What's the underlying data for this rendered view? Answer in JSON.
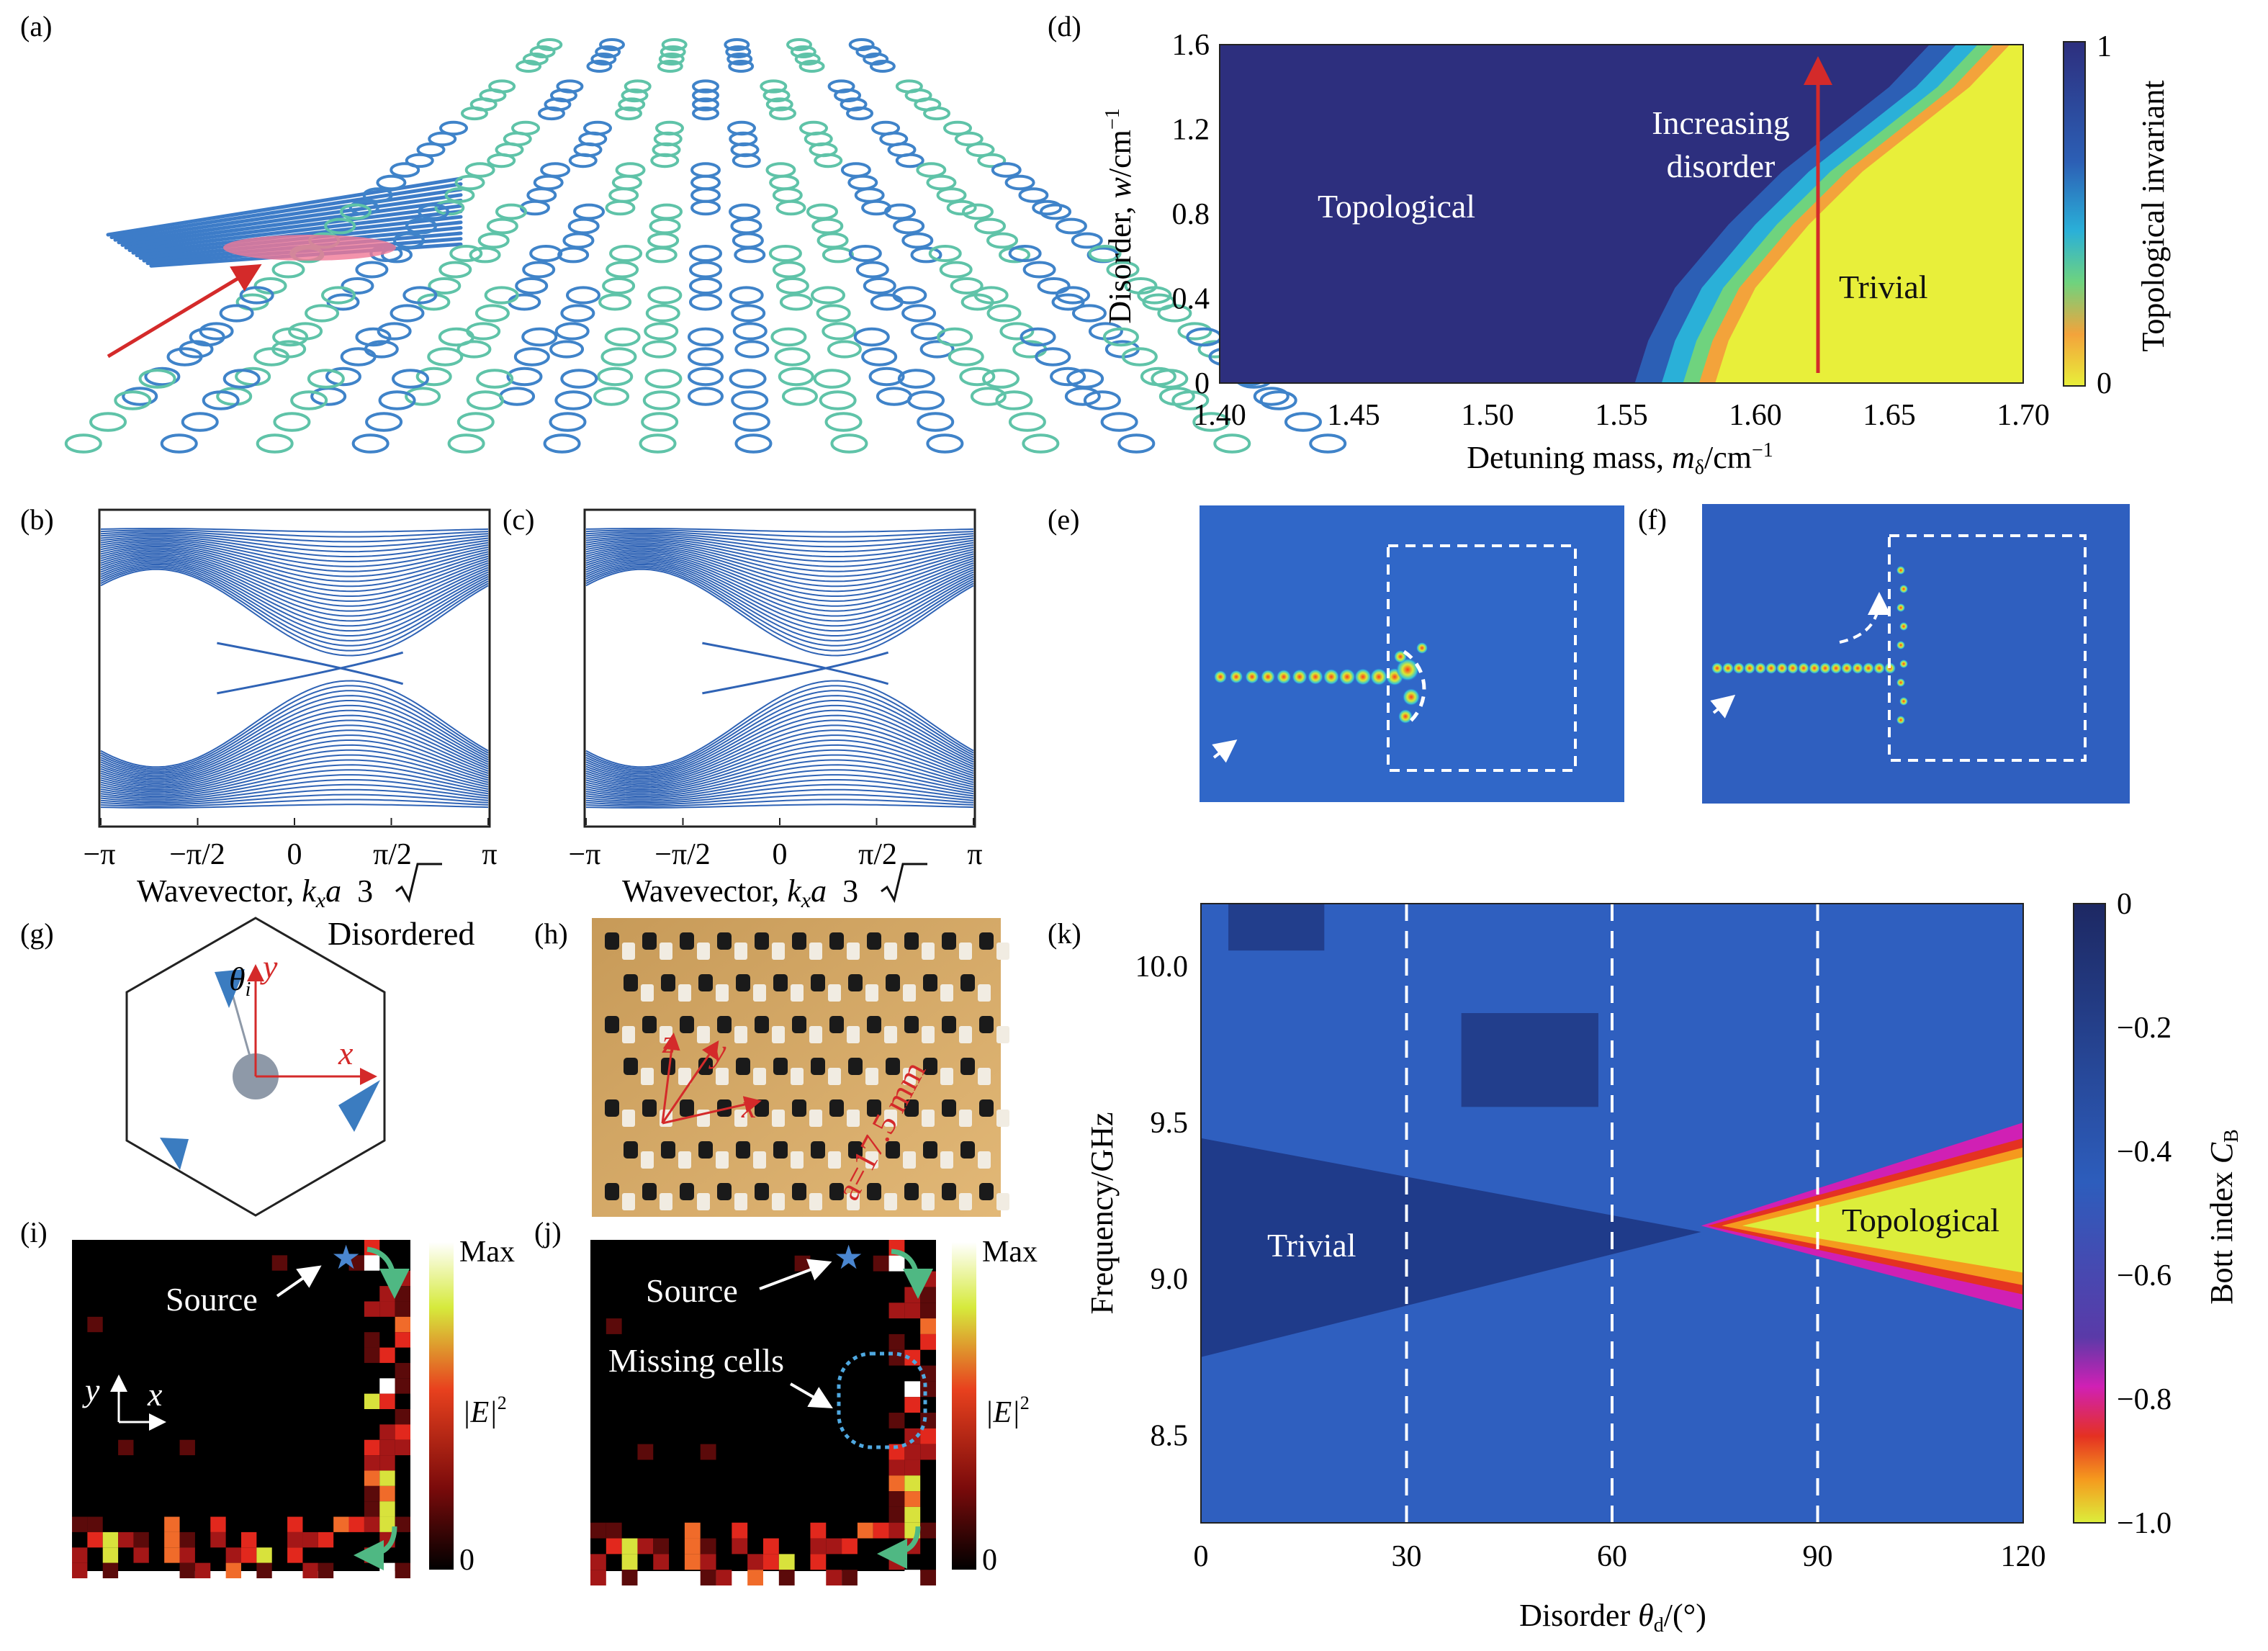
{
  "panels": {
    "a": {
      "label": "(a)"
    },
    "b": {
      "label": "(b)",
      "xlabel": "Wavevector, ",
      "xlabel_var": "k",
      "xlabel_sub": "x",
      "xlabel_rest": "a",
      "xlabel_sqrt": "3",
      "xticks": [
        "−π",
        "−π/2",
        "0",
        "π/2",
        "π"
      ]
    },
    "c": {
      "label": "(c)",
      "xlabel": "Wavevector, ",
      "xlabel_var": "k",
      "xlabel_sub": "x",
      "xlabel_rest": "a",
      "xlabel_sqrt": "3",
      "xticks": [
        "−π",
        "−π/2",
        "0",
        "π/2",
        "π"
      ]
    },
    "d": {
      "label": "(d)",
      "ylabel": "Disorder, ",
      "ylabel_var": "w",
      "ylabel_unit": "/cm",
      "ylabel_exp": "−1",
      "xlabel": "Detuning mass, ",
      "xlabel_var": "m",
      "xlabel_sub": "δ",
      "xlabel_unit": "/cm",
      "xlabel_exp": "−1",
      "cbar_label": "Topological invariant",
      "cbar_max": "1",
      "cbar_min": "0",
      "region_topological": "Topological",
      "region_trivial": "Trivial",
      "arrow_text_1": "Increasing",
      "arrow_text_2": "disorder"
    },
    "e": {
      "label": "(e)"
    },
    "f": {
      "label": "(f)"
    },
    "g": {
      "label": "(g)",
      "title": "Disordered",
      "theta": "θ",
      "theta_sub": "i",
      "axis_x": "x",
      "axis_y": "y"
    },
    "h": {
      "label": "(h)",
      "axis_x": "x",
      "axis_y": "y",
      "axis_z": "z",
      "lattice": "a=17.5 mm"
    },
    "i": {
      "label": "(i)",
      "source": "Source",
      "axis_x": "x",
      "axis_y": "y",
      "cbar_max": "Max",
      "cbar_min": "0",
      "cbar_label": "|E|",
      "cbar_exp": "2"
    },
    "j": {
      "label": "(j)",
      "source": "Source",
      "missing": "Missing cells",
      "cbar_max": "Max",
      "cbar_min": "0",
      "cbar_label": "|E|",
      "cbar_exp": "2"
    },
    "k": {
      "label": "(k)",
      "ylabel": "Frequency/GHz",
      "xlabel": "Disorder ",
      "xlabel_var": "θ",
      "xlabel_sub": "d",
      "xlabel_unit": "/(°)",
      "cbar_label": "Bott index ",
      "cbar_var": "C",
      "cbar_sub": "B",
      "region_trivial": "Trivial",
      "region_topological": "Topological"
    }
  },
  "chart_data": [
    {
      "type": "heatmap",
      "panel": "d",
      "x_range": [
        1.4,
        1.7
      ],
      "y_range": [
        0,
        1.6
      ],
      "xticks": [
        "1.40",
        "1.45",
        "1.50",
        "1.55",
        "1.60",
        "1.65",
        "1.70"
      ],
      "yticks": [
        "0",
        "0.4",
        "0.8",
        "1.2",
        "1.6"
      ],
      "colorbar_range": [
        0,
        1
      ],
      "phase_boundary": {
        "x": [
          1.585,
          1.59,
          1.6,
          1.62,
          1.64,
          1.66,
          1.68,
          1.695
        ],
        "y": [
          0,
          0.2,
          0.45,
          0.75,
          1.0,
          1.2,
          1.4,
          1.6
        ]
      }
    },
    {
      "type": "heatmap",
      "panel": "k",
      "x_range": [
        0,
        120
      ],
      "y_range": [
        8.22,
        10.2
      ],
      "xticks": [
        "0",
        "30",
        "60",
        "90",
        "120"
      ],
      "yticks": [
        "8.5",
        "9.0",
        "9.5",
        "10.0"
      ],
      "colorbar_ticks": [
        "0",
        "−0.2",
        "−0.4",
        "−0.6",
        "−0.8",
        "−1.0"
      ],
      "colorbar_range": [
        -1.0,
        0
      ],
      "dashed_lines_x": [
        30,
        60,
        90
      ],
      "topological_region": {
        "x_start": 73,
        "freq_low": 8.95,
        "freq_high": 9.45
      }
    }
  ]
}
